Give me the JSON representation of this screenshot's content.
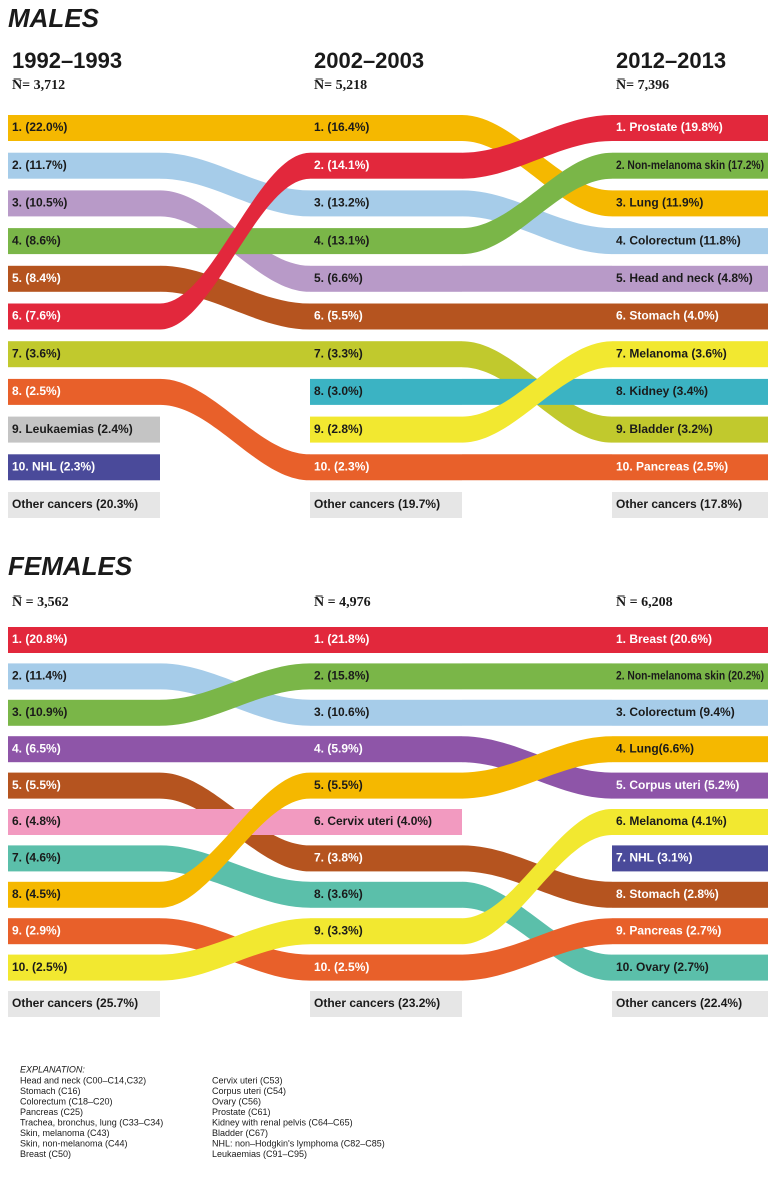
{
  "panels": [
    {
      "title": "MALES",
      "columns": [
        {
          "year": "1992–1993",
          "n": "N̅= 3,712",
          "items": [
            {
              "text": "1. (22.0%)",
              "color": "#f5b800"
            },
            {
              "text": "2. (11.7%)",
              "color": "#a6cce9"
            },
            {
              "text": "3. (10.5%)",
              "color": "#b89ac8"
            },
            {
              "text": "4. (8.6%)",
              "color": "#7ab648"
            },
            {
              "text": "5. (8.4%)",
              "color": "#b5541f"
            },
            {
              "text": "6. (7.6%)",
              "color": "#e2283c"
            },
            {
              "text": "7. (3.6%)",
              "color": "#c1c92d"
            },
            {
              "text": "8. (2.5%)",
              "color": "#e8602a"
            },
            {
              "text": "9. Leukaemias (2.4%)",
              "color": "#c4c4c4"
            },
            {
              "text": "10. NHL (2.3%)",
              "color": "#4a4a9a"
            }
          ],
          "other": "Other cancers (20.3%)"
        },
        {
          "year": "2002–2003",
          "n": "N̅= 5,218",
          "items": [
            {
              "text": "1. (16.4%)",
              "color": "#f5b800"
            },
            {
              "text": "2. (14.1%)",
              "color": "#e2283c"
            },
            {
              "text": "3. (13.2%)",
              "color": "#a6cce9"
            },
            {
              "text": "4. (13.1%)",
              "color": "#7ab648"
            },
            {
              "text": "5. (6.6%)",
              "color": "#b89ac8"
            },
            {
              "text": "6. (5.5%)",
              "color": "#b5541f"
            },
            {
              "text": "7. (3.3%)",
              "color": "#c1c92d"
            },
            {
              "text": "8. (3.0%)",
              "color": "#3bb3c3"
            },
            {
              "text": "9. (2.8%)",
              "color": "#f2e830"
            },
            {
              "text": "10. (2.3%)",
              "color": "#e8602a"
            }
          ],
          "other": "Other cancers (19.7%)"
        },
        {
          "year": "2012–2013",
          "n": "N̅= 7,396",
          "items": [
            {
              "text": "1. Prostate (19.8%)",
              "color": "#e2283c"
            },
            {
              "text": "2. Non-melanoma skin (17.2%)",
              "color": "#7ab648"
            },
            {
              "text": "3. Lung (11.9%)",
              "color": "#f5b800"
            },
            {
              "text": "4. Colorectum (11.8%)",
              "color": "#a6cce9"
            },
            {
              "text": "5. Head and neck (4.8%)",
              "color": "#b89ac8"
            },
            {
              "text": "6. Stomach (4.0%)",
              "color": "#b5541f"
            },
            {
              "text": "7. Melanoma (3.6%)",
              "color": "#f2e830"
            },
            {
              "text": "8. Kidney (3.4%)",
              "color": "#3bb3c3"
            },
            {
              "text": "9. Bladder (3.2%)",
              "color": "#c1c92d"
            },
            {
              "text": "10. Pancreas (2.5%)",
              "color": "#e8602a"
            }
          ],
          "other": "Other cancers (17.8%)"
        }
      ]
    },
    {
      "title": "FEMALES",
      "columns": [
        {
          "n": "N̅ = 3,562",
          "items": [
            {
              "text": "1. (20.8%)",
              "color": "#e2283c"
            },
            {
              "text": "2. (11.4%)",
              "color": "#a6cce9"
            },
            {
              "text": "3. (10.9%)",
              "color": "#7ab648"
            },
            {
              "text": "4. (6.5%)",
              "color": "#8e55a8"
            },
            {
              "text": "5. (5.5%)",
              "color": "#b5541f"
            },
            {
              "text": "6. (4.8%)",
              "color": "#f29ac0"
            },
            {
              "text": "7. (4.6%)",
              "color": "#5bbfaa"
            },
            {
              "text": "8. (4.5%)",
              "color": "#f5b800"
            },
            {
              "text": "9. (2.9%)",
              "color": "#e8602a"
            },
            {
              "text": "10. (2.5%)",
              "color": "#f2e830"
            }
          ],
          "other": "Other cancers (25.7%)"
        },
        {
          "n": "N̅ = 4,976",
          "items": [
            {
              "text": "1. (21.8%)",
              "color": "#e2283c"
            },
            {
              "text": "2. (15.8%)",
              "color": "#7ab648"
            },
            {
              "text": "3. (10.6%)",
              "color": "#a6cce9"
            },
            {
              "text": "4. (5.9%)",
              "color": "#8e55a8"
            },
            {
              "text": "5. (5.5%)",
              "color": "#f5b800"
            },
            {
              "text": "6. Cervix uteri (4.0%)",
              "color": "#f29ac0"
            },
            {
              "text": "7. (3.8%)",
              "color": "#b5541f"
            },
            {
              "text": "8. (3.6%)",
              "color": "#5bbfaa"
            },
            {
              "text": "9. (3.3%)",
              "color": "#f2e830"
            },
            {
              "text": "10. (2.5%)",
              "color": "#e8602a"
            }
          ],
          "other": "Other cancers (23.2%)"
        },
        {
          "n": "N̅ = 6,208",
          "items": [
            {
              "text": "1. Breast (20.6%)",
              "color": "#e2283c"
            },
            {
              "text": "2. Non-melanoma skin (20.2%)",
              "color": "#7ab648"
            },
            {
              "text": "3. Colorectum (9.4%)",
              "color": "#a6cce9"
            },
            {
              "text": "4. Lung(6.6%)",
              "color": "#f5b800"
            },
            {
              "text": "5. Corpus uteri (5.2%)",
              "color": "#8e55a8"
            },
            {
              "text": "6. Melanoma (4.1%)",
              "color": "#f2e830"
            },
            {
              "text": "7. NHL (3.1%)",
              "color": "#4a4a9a"
            },
            {
              "text": "8. Stomach (2.8%)",
              "color": "#b5541f"
            },
            {
              "text": "9. Pancreas (2.7%)",
              "color": "#e8602a"
            },
            {
              "text": "10. Ovary (2.7%)",
              "color": "#5bbfaa"
            }
          ],
          "other": "Other cancers (22.4%)"
        }
      ]
    }
  ],
  "explanation": {
    "title": "EXPLANATION:",
    "left": [
      "Head and neck (C00–C14,C32)",
      "Stomach (C16)",
      "Colorectum (C18–C20)",
      "Pancreas (C25)",
      "Trachea, bronchus, lung (C33–C34)",
      "Skin, melanoma (C43)",
      "Skin, non-melanoma (C44)",
      "Breast (C50)"
    ],
    "right": [
      "Cervix uteri (C53)",
      "Corpus uteri (C54)",
      "Ovary (C56)",
      "Prostate (C61)",
      "Kidney with renal pelvis (C64–C65)",
      "Bladder (C67)",
      "NHL: non–Hodgkin's lymphoma (C82–C85)",
      "Leukaemias (C91–C95)"
    ]
  }
}
